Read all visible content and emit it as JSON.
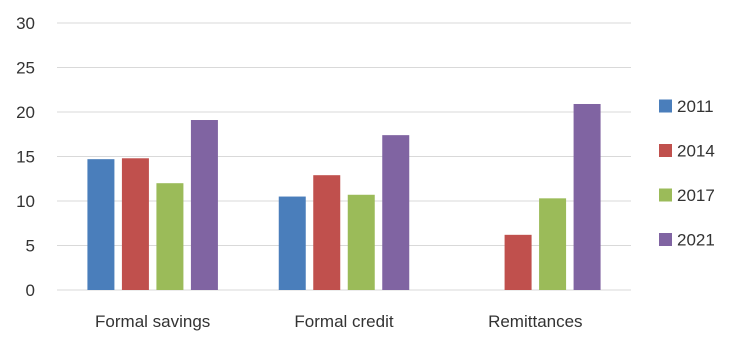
{
  "chart_data": {
    "type": "bar",
    "title": "",
    "xlabel": "",
    "ylabel": "",
    "categories": [
      "Formal savings",
      "Formal credit",
      "Remittances"
    ],
    "ylim": [
      0,
      30
    ],
    "yticks": [
      0,
      5,
      10,
      15,
      20,
      25,
      30
    ],
    "grid": true,
    "legend_position": "right",
    "series": [
      {
        "name": "2011",
        "color": "#4a7ebb",
        "values": [
          14.7,
          10.5,
          null
        ]
      },
      {
        "name": "2014",
        "color": "#c0504d",
        "values": [
          14.8,
          12.9,
          6.2
        ]
      },
      {
        "name": "2017",
        "color": "#9bbb59",
        "values": [
          12.0,
          10.7,
          10.3
        ]
      },
      {
        "name": "2021",
        "color": "#8064a2",
        "values": [
          19.1,
          17.4,
          20.9
        ]
      }
    ]
  }
}
